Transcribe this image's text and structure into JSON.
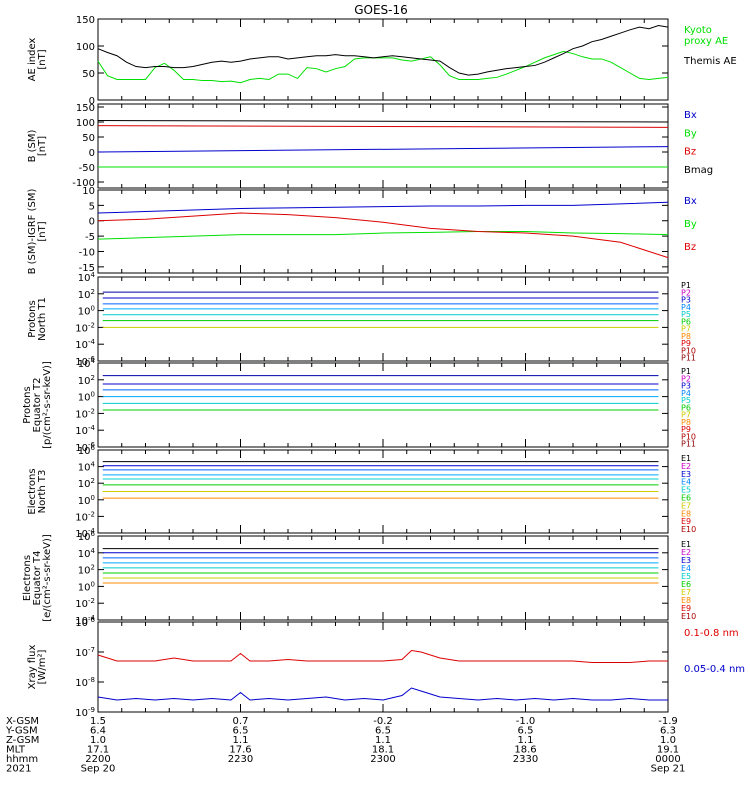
{
  "title": "GOES-16",
  "colors": {
    "black": "#000000",
    "green": "#00e000",
    "blue": "#0000cc",
    "red": "#dd0000"
  },
  "chart_data": [
    {
      "type": "line",
      "id": "ae",
      "ylabel": [
        "AE index",
        "[nT]"
      ],
      "ylim": [
        0,
        150
      ],
      "yticks": [
        "150",
        "100",
        "50",
        "0"
      ],
      "x": [
        0,
        2,
        4,
        6,
        8,
        10,
        12,
        14,
        16,
        18,
        20,
        22,
        24,
        26,
        28,
        30,
        32,
        34,
        36,
        38,
        40,
        42,
        44,
        46,
        48,
        50,
        52,
        54,
        56,
        58,
        60,
        62,
        64,
        66,
        68,
        70,
        72,
        74,
        76,
        78,
        80,
        82,
        84,
        86,
        88,
        90,
        92,
        94,
        96,
        98,
        100,
        102,
        104,
        106,
        108,
        110,
        112,
        114,
        116,
        118,
        120
      ],
      "series": [
        {
          "name": "Kyoto proxy AE",
          "color": "green",
          "label_lines": [
            "Kyoto",
            "proxy AE"
          ],
          "values": [
            72,
            45,
            38,
            38,
            38,
            38,
            60,
            68,
            55,
            38,
            38,
            36,
            36,
            34,
            35,
            32,
            38,
            40,
            38,
            48,
            48,
            40,
            60,
            58,
            52,
            58,
            62,
            76,
            78,
            78,
            78,
            78,
            74,
            72,
            76,
            80,
            65,
            45,
            38,
            38,
            38,
            40,
            42,
            48,
            55,
            62,
            70,
            78,
            84,
            90,
            86,
            80,
            76,
            76,
            70,
            60,
            50,
            40,
            38,
            40,
            42
          ]
        },
        {
          "name": "Themis AE",
          "color": "black",
          "label_lines": [
            "Themis AE"
          ],
          "values": [
            95,
            88,
            82,
            70,
            62,
            60,
            62,
            62,
            60,
            60,
            62,
            66,
            70,
            72,
            70,
            72,
            76,
            78,
            80,
            80,
            76,
            78,
            80,
            82,
            82,
            84,
            82,
            82,
            80,
            78,
            80,
            82,
            80,
            78,
            76,
            74,
            72,
            60,
            50,
            46,
            48,
            52,
            55,
            58,
            60,
            62,
            64,
            70,
            78,
            86,
            95,
            100,
            108,
            112,
            118,
            124,
            130,
            135,
            132,
            138,
            135
          ]
        }
      ]
    },
    {
      "type": "line",
      "id": "bsm",
      "ylabel": [
        "B (SM)",
        "[nT]"
      ],
      "ylim": [
        -120,
        160
      ],
      "yticks": [
        "150",
        "100",
        "50",
        "0",
        "-50",
        "-100"
      ],
      "x": [
        0,
        120
      ],
      "series": [
        {
          "name": "Bx",
          "color": "blue",
          "values": [
            0,
            18
          ]
        },
        {
          "name": "By",
          "color": "green",
          "values": [
            -50,
            -50
          ]
        },
        {
          "name": "Bz",
          "color": "red",
          "values": [
            88,
            82
          ]
        },
        {
          "name": "Bmag",
          "color": "black",
          "values": [
            105,
            100
          ]
        }
      ]
    },
    {
      "type": "line",
      "id": "bsm_igrf",
      "ylabel": [
        "B (SM)-IGRF (SM)",
        "[nT]"
      ],
      "ylim": [
        -17,
        10
      ],
      "yticks": [
        "10",
        "5",
        "0",
        "-5",
        "-10",
        "-15"
      ],
      "x": [
        0,
        10,
        20,
        30,
        40,
        50,
        60,
        70,
        80,
        90,
        100,
        110,
        120
      ],
      "series": [
        {
          "name": "Bx",
          "color": "blue",
          "values": [
            2.5,
            3,
            3.5,
            4,
            4.2,
            4.4,
            4.6,
            4.8,
            4.8,
            5,
            5,
            5.5,
            6
          ]
        },
        {
          "name": "By",
          "color": "green",
          "values": [
            -6,
            -5.5,
            -5,
            -4.5,
            -4.5,
            -4.5,
            -4,
            -3.8,
            -3.5,
            -3.5,
            -4,
            -4.2,
            -4.5
          ]
        },
        {
          "name": "Bz",
          "color": "red",
          "values": [
            0,
            0.5,
            1.5,
            2.5,
            2,
            1,
            -0.5,
            -2.5,
            -3.5,
            -4,
            -5,
            -7,
            -12
          ]
        }
      ]
    },
    {
      "type": "line",
      "id": "p_north",
      "ylabel": [
        "Protons",
        "North T1"
      ],
      "ylim": [
        -6,
        4
      ],
      "yticks": [
        "10^4",
        "10^2",
        "10^0",
        "10^-2",
        "10^-4",
        "10^-6"
      ],
      "legend": [
        "P1",
        "P2",
        "P3",
        "P4",
        "P5",
        "P6",
        "P7",
        "P8",
        "P9",
        "P10",
        "P11"
      ],
      "x_range": [
        0,
        120
      ],
      "levels": [
        2.2,
        1.5,
        0.8,
        0.2,
        -0.5,
        -1.2,
        -2
      ]
    },
    {
      "type": "line",
      "id": "p_eq",
      "ylabel": [
        "Protons",
        "Equator T2",
        "[p/(cm²-s-sr-keV)]"
      ],
      "ylim": [
        -6,
        4
      ],
      "yticks": [
        "10^4",
        "10^2",
        "10^0",
        "10^-2",
        "10^-4",
        "10^-6"
      ],
      "legend": [
        "P1",
        "P2",
        "P3",
        "P4",
        "P5",
        "P6",
        "P7",
        "P8",
        "P9",
        "P10",
        "P11"
      ],
      "x_range": [
        0,
        120
      ],
      "levels": [
        2.5,
        1.5,
        0.8,
        0,
        -0.8,
        -1.6
      ]
    },
    {
      "type": "line",
      "id": "e_north",
      "ylabel": [
        "Electrons",
        "North T3"
      ],
      "ylim": [
        -4,
        6
      ],
      "yticks": [
        "10^6",
        "10^4",
        "10^2",
        "10^0",
        "10^-2",
        "10^-4"
      ],
      "legend": [
        "E1",
        "E2",
        "E3",
        "E4",
        "E5",
        "E6",
        "E7",
        "E8",
        "E9",
        "E10"
      ],
      "x_range": [
        0,
        120
      ],
      "levels": [
        4.6,
        4.1,
        3.6,
        3.0,
        2.5,
        1.8,
        1.0,
        0.2
      ]
    },
    {
      "type": "line",
      "id": "e_eq",
      "ylabel": [
        "Electrons",
        "Equator T4",
        "[e/(cm²-s-sr-keV)]"
      ],
      "ylim": [
        -4,
        6
      ],
      "yticks": [
        "10^6",
        "10^4",
        "10^2",
        "10^0",
        "10^-2",
        "10^-4"
      ],
      "legend": [
        "E1",
        "E2",
        "E3",
        "E4",
        "E5",
        "E6",
        "E7",
        "E8",
        "E9",
        "E10"
      ],
      "x_range": [
        0,
        120
      ],
      "levels": [
        4.5,
        4.0,
        3.4,
        2.8,
        2.2,
        1.6,
        1.0,
        0.4
      ]
    },
    {
      "type": "line",
      "id": "xray",
      "ylabel": [
        "Xray flux",
        "[W/m²]"
      ],
      "ylim": [
        -9,
        -6
      ],
      "yticks": [
        "10^-6",
        "10^-7",
        "10^-8",
        "10^-9"
      ],
      "x": [
        0,
        4,
        8,
        12,
        16,
        20,
        24,
        28,
        30,
        32,
        36,
        40,
        44,
        48,
        52,
        56,
        60,
        64,
        66,
        68,
        72,
        76,
        80,
        84,
        88,
        92,
        96,
        100,
        104,
        108,
        112,
        116,
        120
      ],
      "series": [
        {
          "name": "0.1-0.8 nm",
          "color": "red",
          "values": [
            -7.1,
            -7.3,
            -7.3,
            -7.3,
            -7.2,
            -7.3,
            -7.3,
            -7.3,
            -7.05,
            -7.3,
            -7.3,
            -7.25,
            -7.3,
            -7.3,
            -7.3,
            -7.3,
            -7.3,
            -7.25,
            -6.95,
            -7.0,
            -7.2,
            -7.3,
            -7.3,
            -7.3,
            -7.3,
            -7.3,
            -7.3,
            -7.3,
            -7.35,
            -7.35,
            -7.35,
            -7.3,
            -7.3
          ]
        },
        {
          "name": "0.05-0.4 nm",
          "color": "blue",
          "values": [
            -8.5,
            -8.6,
            -8.55,
            -8.6,
            -8.55,
            -8.6,
            -8.55,
            -8.6,
            -8.35,
            -8.6,
            -8.55,
            -8.6,
            -8.55,
            -8.5,
            -8.6,
            -8.55,
            -8.6,
            -8.45,
            -8.2,
            -8.3,
            -8.5,
            -8.55,
            -8.6,
            -8.55,
            -8.6,
            -8.55,
            -8.6,
            -8.55,
            -8.6,
            -8.6,
            -8.55,
            -8.6,
            -8.6
          ]
        }
      ]
    }
  ],
  "x_axis": {
    "row_labels": [
      "X-GSM",
      "Y-GSM",
      "Z-GSM",
      "MLT",
      "hhmm",
      "2021"
    ],
    "ticks": [
      {
        "t": 0,
        "lines": [
          "1.5",
          "6.4",
          "1.0",
          "17.1",
          "2200",
          "Sep 20"
        ]
      },
      {
        "t": 30,
        "lines": [
          "0.7",
          "6.5",
          "1.1",
          "17.6",
          "2230",
          ""
        ]
      },
      {
        "t": 60,
        "lines": [
          "-0.2",
          "6.5",
          "1.1",
          "18.1",
          "2300",
          ""
        ]
      },
      {
        "t": 90,
        "lines": [
          "-1.0",
          "6.5",
          "1.1",
          "18.6",
          "2330",
          ""
        ]
      },
      {
        "t": 120,
        "lines": [
          "-1.9",
          "6.3",
          "1.0",
          "19.1",
          "0000",
          "Sep 21"
        ]
      }
    ]
  }
}
